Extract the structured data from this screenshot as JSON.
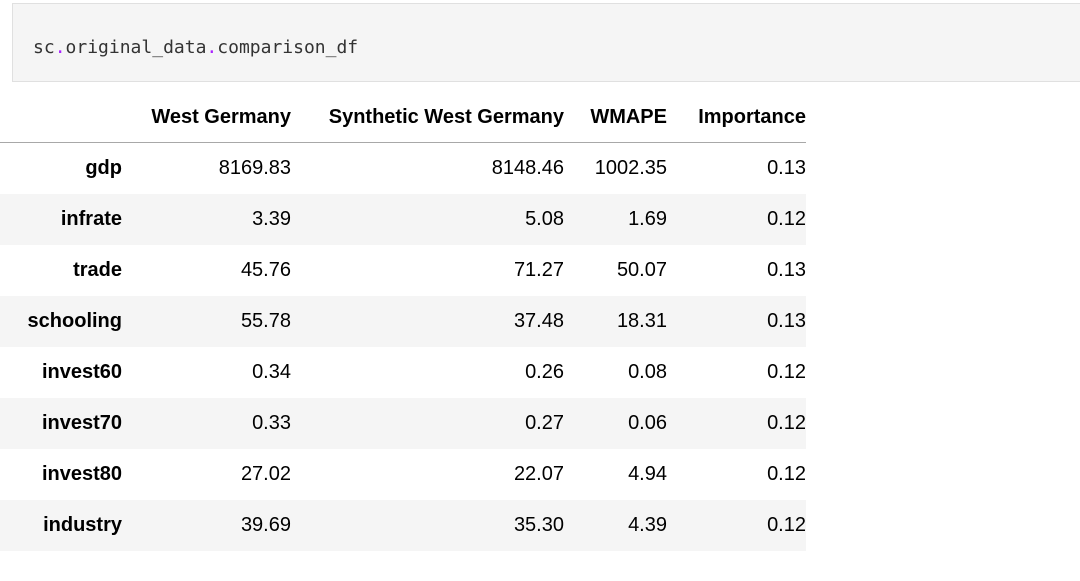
{
  "code_cell": {
    "prefix": "sc",
    "dot1": ".",
    "middle": "original_data",
    "dot2": ".",
    "suffix": "comparison_df"
  },
  "table": {
    "columns": [
      "West Germany",
      "Synthetic West Germany",
      "WMAPE",
      "Importance"
    ],
    "rows": [
      {
        "index": "gdp",
        "values": [
          "8169.83",
          "8148.46",
          "1002.35",
          "0.13"
        ]
      },
      {
        "index": "infrate",
        "values": [
          "3.39",
          "5.08",
          "1.69",
          "0.12"
        ]
      },
      {
        "index": "trade",
        "values": [
          "45.76",
          "71.27",
          "50.07",
          "0.13"
        ]
      },
      {
        "index": "schooling",
        "values": [
          "55.78",
          "37.48",
          "18.31",
          "0.13"
        ]
      },
      {
        "index": "invest60",
        "values": [
          "0.34",
          "0.26",
          "0.08",
          "0.12"
        ]
      },
      {
        "index": "invest70",
        "values": [
          "0.33",
          "0.27",
          "0.06",
          "0.12"
        ]
      },
      {
        "index": "invest80",
        "values": [
          "27.02",
          "22.07",
          "4.94",
          "0.12"
        ]
      },
      {
        "index": "industry",
        "values": [
          "39.69",
          "35.30",
          "4.39",
          "0.12"
        ]
      }
    ]
  },
  "colors": {
    "code_background": "#f5f5f5",
    "stripe_background": "#f5f5f5",
    "header_rule": "#a8a8a8",
    "dot_color": "#aa22ff"
  }
}
